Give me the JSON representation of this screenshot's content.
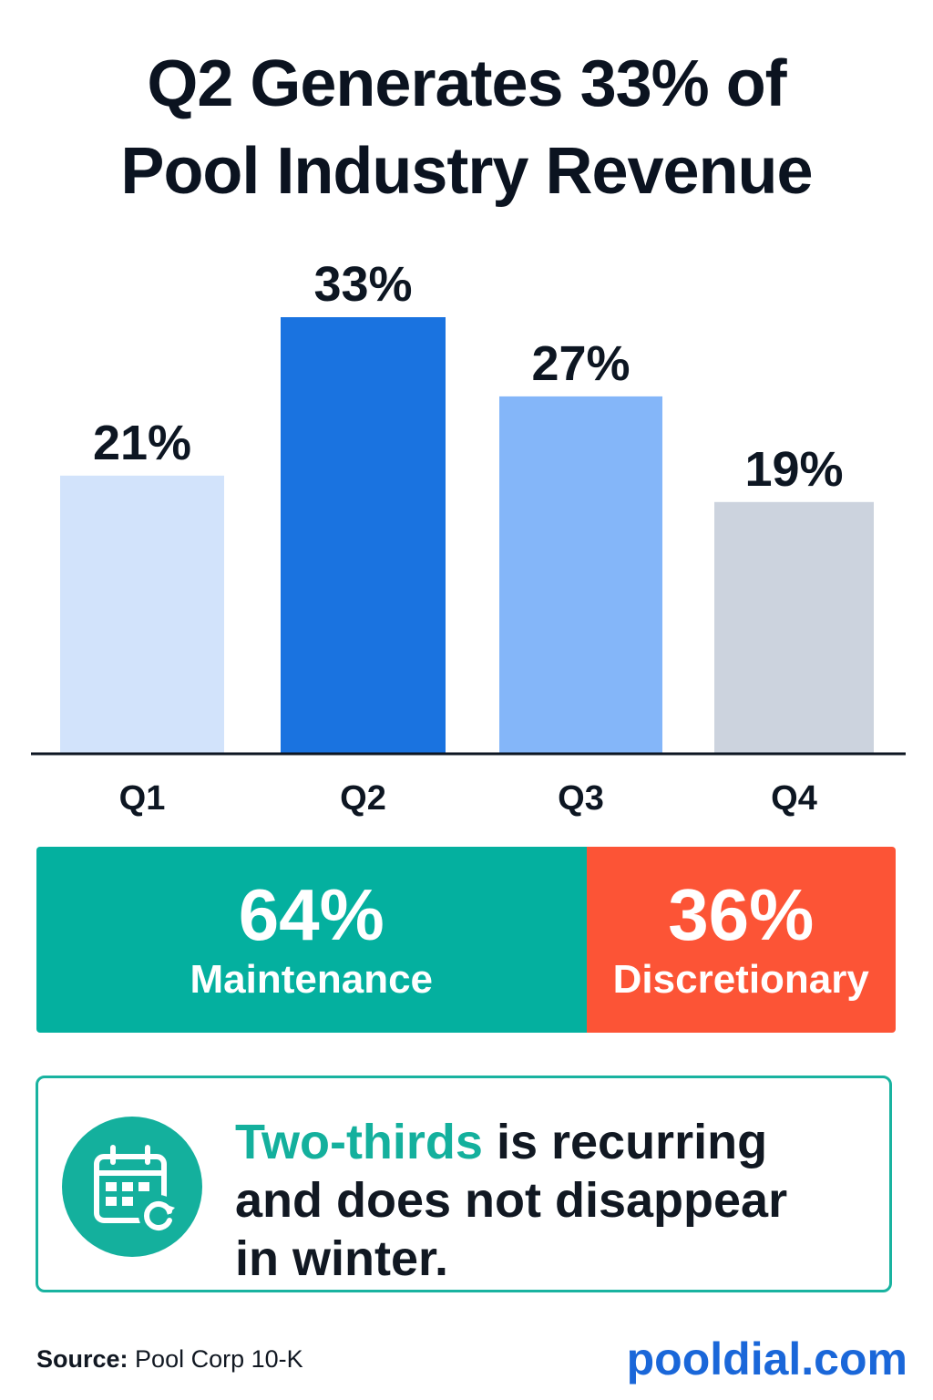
{
  "title": {
    "line1": "Q2 Generates 33% of",
    "line2": "Pool Industry Revenue"
  },
  "chart_data": {
    "type": "bar",
    "categories": [
      "Q1",
      "Q2",
      "Q3",
      "Q4"
    ],
    "values": [
      21,
      33,
      27,
      19
    ],
    "value_labels": [
      "21%",
      "33%",
      "27%",
      "19%"
    ],
    "colors": [
      "#d2e3fb",
      "#1a73e0",
      "#84b6f9",
      "#ccd3de"
    ],
    "unit": "%",
    "ylim": [
      0,
      33
    ],
    "grid": false,
    "legend": "none"
  },
  "split": {
    "segments": [
      {
        "value": 64,
        "pct_label": "64%",
        "label": "Maintenance",
        "color": "#04b09f"
      },
      {
        "value": 36,
        "pct_label": "36%",
        "label": "Discretionary",
        "color": "#fc5436"
      }
    ]
  },
  "callout": {
    "highlight": "Two-thirds",
    "text_line1": " is recurring",
    "text_line2": "and does not disappear",
    "text_line3": "in winter.",
    "icon": "calendar-recurring-icon"
  },
  "footer": {
    "source_label": "Source:",
    "source_value": "Pool Corp 10-K",
    "brand": "pooldial.com"
  }
}
